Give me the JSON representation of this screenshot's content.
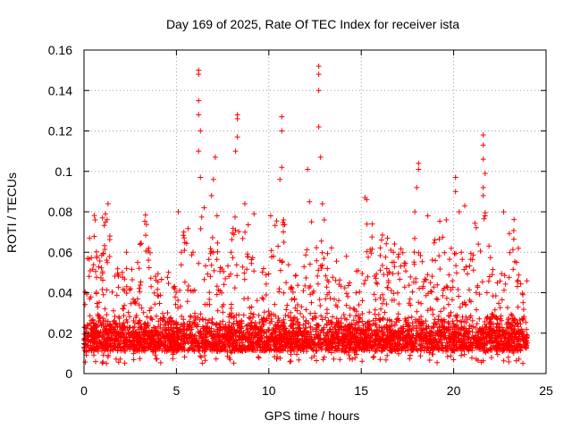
{
  "chart_data": {
    "type": "scatter",
    "title": "Day 169 of 2025, Rate Of TEC Index for receiver ista",
    "xlabel": "GPS time / hours",
    "ylabel": "ROTI / TECUs",
    "xlim": [
      0,
      25
    ],
    "ylim": [
      0,
      0.16
    ],
    "xticks": [
      0,
      5,
      10,
      15,
      20,
      25
    ],
    "xtick_labels": [
      "0",
      "5",
      "10",
      "15",
      "20",
      "25"
    ],
    "yticks": [
      0,
      0.02,
      0.04,
      0.06,
      0.08,
      0.1,
      0.12,
      0.14,
      0.16
    ],
    "ytick_labels": [
      "0",
      "0.02",
      "0.04",
      "0.06",
      "0.08",
      "0.1",
      "0.12",
      "0.14",
      "0.16"
    ],
    "grid": true,
    "marker": "+",
    "series": [
      {
        "name": "ROTI",
        "color": "#ff0000",
        "x_range": [
          0,
          24
        ],
        "typical_range": [
          0.005,
          0.04
        ],
        "points": [
          {
            "x": 0.3,
            "y": 0.067
          },
          {
            "x": 0.6,
            "y": 0.076
          },
          {
            "x": 1.0,
            "y": 0.077
          },
          {
            "x": 1.3,
            "y": 0.084
          },
          {
            "x": 1.4,
            "y": 0.068
          },
          {
            "x": 2.3,
            "y": 0.06
          },
          {
            "x": 2.9,
            "y": 0.055
          },
          {
            "x": 3.5,
            "y": 0.062
          },
          {
            "x": 5.1,
            "y": 0.08
          },
          {
            "x": 5.4,
            "y": 0.07
          },
          {
            "x": 5.9,
            "y": 0.06
          },
          {
            "x": 6.2,
            "y": 0.15
          },
          {
            "x": 6.2,
            "y": 0.148
          },
          {
            "x": 6.2,
            "y": 0.135
          },
          {
            "x": 6.2,
            "y": 0.128
          },
          {
            "x": 6.3,
            "y": 0.12
          },
          {
            "x": 6.2,
            "y": 0.11
          },
          {
            "x": 6.3,
            "y": 0.097
          },
          {
            "x": 6.5,
            "y": 0.082
          },
          {
            "x": 6.9,
            "y": 0.088
          },
          {
            "x": 7.0,
            "y": 0.096
          },
          {
            "x": 7.1,
            "y": 0.107
          },
          {
            "x": 7.2,
            "y": 0.078
          },
          {
            "x": 8.3,
            "y": 0.128
          },
          {
            "x": 8.3,
            "y": 0.126
          },
          {
            "x": 8.3,
            "y": 0.117
          },
          {
            "x": 8.2,
            "y": 0.11
          },
          {
            "x": 8.7,
            "y": 0.084
          },
          {
            "x": 9.2,
            "y": 0.079
          },
          {
            "x": 10.1,
            "y": 0.078
          },
          {
            "x": 10.5,
            "y": 0.063
          },
          {
            "x": 10.7,
            "y": 0.127
          },
          {
            "x": 10.7,
            "y": 0.12
          },
          {
            "x": 10.7,
            "y": 0.102
          },
          {
            "x": 10.6,
            "y": 0.096
          },
          {
            "x": 10.8,
            "y": 0.076
          },
          {
            "x": 12.1,
            "y": 0.101
          },
          {
            "x": 12.2,
            "y": 0.085
          },
          {
            "x": 12.7,
            "y": 0.152
          },
          {
            "x": 12.7,
            "y": 0.148
          },
          {
            "x": 12.7,
            "y": 0.14
          },
          {
            "x": 12.7,
            "y": 0.122
          },
          {
            "x": 12.8,
            "y": 0.107
          },
          {
            "x": 12.9,
            "y": 0.084
          },
          {
            "x": 13.0,
            "y": 0.076
          },
          {
            "x": 14.2,
            "y": 0.058
          },
          {
            "x": 15.2,
            "y": 0.087
          },
          {
            "x": 15.3,
            "y": 0.086
          },
          {
            "x": 15.6,
            "y": 0.074
          },
          {
            "x": 16.1,
            "y": 0.066
          },
          {
            "x": 16.6,
            "y": 0.061
          },
          {
            "x": 17.9,
            "y": 0.08
          },
          {
            "x": 18.0,
            "y": 0.092
          },
          {
            "x": 18.1,
            "y": 0.104
          },
          {
            "x": 18.1,
            "y": 0.101
          },
          {
            "x": 18.6,
            "y": 0.078
          },
          {
            "x": 19.6,
            "y": 0.076
          },
          {
            "x": 20.1,
            "y": 0.097
          },
          {
            "x": 20.1,
            "y": 0.09
          },
          {
            "x": 20.3,
            "y": 0.08
          },
          {
            "x": 20.6,
            "y": 0.083
          },
          {
            "x": 21.6,
            "y": 0.118
          },
          {
            "x": 21.6,
            "y": 0.113
          },
          {
            "x": 21.6,
            "y": 0.106
          },
          {
            "x": 21.7,
            "y": 0.099
          },
          {
            "x": 21.6,
            "y": 0.092
          },
          {
            "x": 21.6,
            "y": 0.088
          },
          {
            "x": 21.7,
            "y": 0.078
          },
          {
            "x": 22.7,
            "y": 0.08
          },
          {
            "x": 23.5,
            "y": 0.062
          },
          {
            "x": 23.4,
            "y": 0.055
          }
        ]
      }
    ]
  }
}
